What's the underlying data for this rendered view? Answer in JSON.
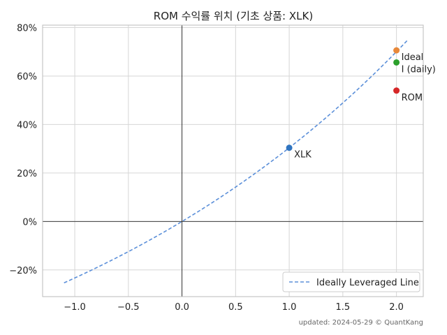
{
  "chart_data": {
    "type": "scatter",
    "title": "ROM 수익률 위치 (기초 상품: XLK)",
    "xlabel": "",
    "ylabel": "",
    "xlim": [
      -1.3,
      2.25
    ],
    "ylim": [
      -0.31,
      0.81
    ],
    "x_ticks": [
      -1.0,
      -0.5,
      0.0,
      0.5,
      1.0,
      1.5,
      2.0
    ],
    "x_tick_labels": [
      "−1.0",
      "−0.5",
      "0.0",
      "0.5",
      "1.0",
      "1.5",
      "2.0"
    ],
    "y_ticks": [
      -0.2,
      0.0,
      0.2,
      0.4,
      0.6,
      0.8
    ],
    "y_tick_labels": [
      "−20%",
      "0%",
      "20%",
      "40%",
      "60%",
      "80%"
    ],
    "grid": true,
    "legend_position": "lower-right",
    "line_series": {
      "name": "Ideally Leveraged Line",
      "style": "dashed",
      "color": "#5b8fd9",
      "underlying_return": 0.304,
      "x_range": [
        -1.1,
        2.1
      ]
    },
    "points": [
      {
        "label": "XLK",
        "x": 1.0,
        "y": 0.304,
        "color": "#2f74c0"
      },
      {
        "label": "Ideal",
        "x": 2.0,
        "y": 0.706,
        "color": "#e8883a"
      },
      {
        "label": "I (daily)",
        "x": 2.0,
        "y": 0.656,
        "color": "#2ca02c"
      },
      {
        "label": "ROM",
        "x": 2.0,
        "y": 0.54,
        "color": "#d62728"
      }
    ]
  },
  "footer": "updated: 2024-05-29 © QuantKang"
}
